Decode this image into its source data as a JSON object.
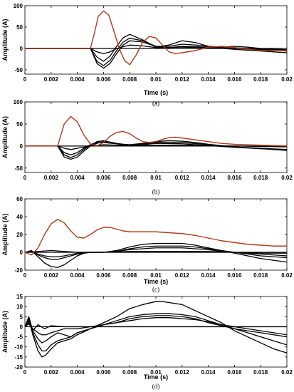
{
  "chart_data": [
    {
      "type": "line",
      "caption": "(a)",
      "xlabel": "Time (s)",
      "ylabel": "Amplitude (A)",
      "xlim": [
        0,
        0.02
      ],
      "ylim": [
        -60,
        100
      ],
      "xticks": [
        "0",
        "0.002",
        "0.004",
        "0.006",
        "0.008",
        "0.01",
        "0.012",
        "0.014",
        "0.016",
        "0.018",
        "0.02"
      ],
      "yticks": [
        -50,
        0,
        50,
        100
      ],
      "grid": false,
      "series": [
        {
          "color": "#b03a1a",
          "x": [
            0,
            0.005,
            0.0053,
            0.0056,
            0.006,
            0.0064,
            0.0068,
            0.0072,
            0.0076,
            0.008,
            0.0085,
            0.009,
            0.0095,
            0.01,
            0.0105,
            0.011,
            0.0115,
            0.012,
            0.013,
            0.014,
            0.015,
            0.016,
            0.017,
            0.018,
            0.019,
            0.02
          ],
          "y": [
            0,
            0,
            35,
            75,
            88,
            78,
            40,
            0,
            -28,
            -38,
            -15,
            15,
            28,
            25,
            8,
            -8,
            -12,
            -10,
            -5,
            3,
            5,
            2,
            -2,
            -5,
            -5,
            -4
          ]
        },
        {
          "color": "#000000",
          "x": [
            0,
            0.005,
            0.0055,
            0.006,
            0.0065,
            0.007,
            0.0075,
            0.008,
            0.009,
            0.01,
            0.011,
            0.012,
            0.013,
            0.014,
            0.015,
            0.016,
            0.017,
            0.018,
            0.019,
            0.02
          ],
          "y": [
            0,
            0,
            -20,
            -30,
            -18,
            5,
            25,
            33,
            20,
            3,
            8,
            18,
            14,
            5,
            3,
            5,
            3,
            0,
            -2,
            -3
          ]
        },
        {
          "color": "#000000",
          "x": [
            0,
            0.005,
            0.0055,
            0.006,
            0.0065,
            0.007,
            0.0075,
            0.008,
            0.009,
            0.01,
            0.011,
            0.012,
            0.013,
            0.014,
            0.016,
            0.018,
            0.02
          ],
          "y": [
            0,
            0,
            -30,
            -40,
            -28,
            -5,
            15,
            24,
            18,
            5,
            5,
            10,
            8,
            5,
            2,
            -3,
            -6
          ]
        },
        {
          "color": "#000000",
          "x": [
            0,
            0.005,
            0.0055,
            0.006,
            0.0065,
            0.007,
            0.0075,
            0.008,
            0.009,
            0.01,
            0.011,
            0.012,
            0.014,
            0.016,
            0.018,
            0.02
          ],
          "y": [
            0,
            0,
            -35,
            -46,
            -35,
            -12,
            8,
            18,
            15,
            5,
            2,
            5,
            3,
            -2,
            -6,
            -10
          ]
        },
        {
          "color": "#000000",
          "x": [
            0,
            0.005,
            0.0055,
            0.006,
            0.0065,
            0.007,
            0.008,
            0.009,
            0.01,
            0.012,
            0.014,
            0.016,
            0.018,
            0.02
          ],
          "y": [
            0,
            0,
            -8,
            -12,
            -8,
            0,
            8,
            6,
            2,
            3,
            2,
            0,
            -2,
            -4
          ]
        }
      ]
    },
    {
      "type": "line",
      "caption": "(b)",
      "xlabel": "",
      "ylabel": "Amplitude (A)",
      "xlim": [
        0,
        0.02
      ],
      "ylim": [
        -60,
        100
      ],
      "xticks": [
        "0",
        "0.002",
        "0.004",
        "0.006",
        "0.008",
        "0.01",
        "0.012",
        "0.014",
        "0.016",
        "0.018",
        "0.02"
      ],
      "yticks": [
        -50,
        0,
        50,
        100
      ],
      "grid": false,
      "series": [
        {
          "color": "#b03a1a",
          "x": [
            0,
            0.0025,
            0.003,
            0.0035,
            0.004,
            0.0045,
            0.005,
            0.0055,
            0.006,
            0.0065,
            0.007,
            0.0075,
            0.008,
            0.0085,
            0.009,
            0.0095,
            0.01,
            0.0105,
            0.011,
            0.0115,
            0.012,
            0.013,
            0.014,
            0.015,
            0.016,
            0.017,
            0.018,
            0.019,
            0.02
          ],
          "y": [
            0,
            0,
            50,
            67,
            55,
            25,
            5,
            0,
            8,
            22,
            31,
            33,
            28,
            18,
            10,
            8,
            10,
            15,
            19,
            20,
            18,
            14,
            10,
            6,
            4,
            3,
            2,
            1,
            0
          ]
        },
        {
          "color": "#000000",
          "x": [
            0,
            0.0025,
            0.003,
            0.0035,
            0.004,
            0.0045,
            0.005,
            0.0055,
            0.006,
            0.007,
            0.008,
            0.009,
            0.01,
            0.011,
            0.012,
            0.013,
            0.014,
            0.016,
            0.018,
            0.02
          ],
          "y": [
            0,
            0,
            -15,
            -20,
            -15,
            -5,
            3,
            8,
            8,
            5,
            3,
            6,
            10,
            12,
            11,
            8,
            4,
            -2,
            -6,
            -10
          ]
        },
        {
          "color": "#000000",
          "x": [
            0,
            0.0025,
            0.003,
            0.0035,
            0.004,
            0.0045,
            0.005,
            0.0055,
            0.006,
            0.007,
            0.008,
            0.009,
            0.01,
            0.012,
            0.014,
            0.016,
            0.018,
            0.02
          ],
          "y": [
            0,
            0,
            -20,
            -26,
            -20,
            -8,
            2,
            10,
            12,
            6,
            2,
            5,
            8,
            8,
            3,
            -2,
            -5,
            -8
          ]
        },
        {
          "color": "#000000",
          "x": [
            0,
            0.0025,
            0.003,
            0.0035,
            0.004,
            0.0045,
            0.005,
            0.0055,
            0.006,
            0.007,
            0.008,
            0.009,
            0.01,
            0.012,
            0.014,
            0.016,
            0.018,
            0.02
          ],
          "y": [
            0,
            0,
            -25,
            -30,
            -25,
            -12,
            0,
            6,
            10,
            5,
            0,
            3,
            6,
            5,
            1,
            -3,
            -6,
            -8
          ]
        },
        {
          "color": "#000000",
          "x": [
            0,
            0.0025,
            0.003,
            0.0035,
            0.004,
            0.005,
            0.006,
            0.008,
            0.01,
            0.012,
            0.014,
            0.016,
            0.018,
            0.02
          ],
          "y": [
            0,
            0,
            -5,
            -8,
            -5,
            0,
            3,
            1,
            2,
            2,
            1,
            0,
            -1,
            -2
          ]
        }
      ]
    },
    {
      "type": "line",
      "caption": "(c)",
      "xlabel": "Time (s)",
      "ylabel": "Amplitude (A)",
      "xlim": [
        0,
        0.02
      ],
      "ylim": [
        -20,
        60
      ],
      "xticks": [
        "0",
        "0.002",
        "0.004",
        "0.006",
        "0.008",
        "0.01",
        "0.012",
        "0.014",
        "0.016",
        "0.018",
        "0.02"
      ],
      "yticks": [
        -20,
        0,
        20,
        40,
        60
      ],
      "grid": false,
      "series": [
        {
          "color": "#b03a1a",
          "x": [
            0,
            0.0005,
            0.001,
            0.0015,
            0.002,
            0.0025,
            0.003,
            0.0035,
            0.004,
            0.0045,
            0.005,
            0.0055,
            0.006,
            0.0065,
            0.007,
            0.0075,
            0.008,
            0.009,
            0.01,
            0.011,
            0.012,
            0.013,
            0.014,
            0.015,
            0.016,
            0.017,
            0.018,
            0.019,
            0.02
          ],
          "y": [
            0,
            -3,
            5,
            20,
            32,
            37,
            33,
            24,
            17,
            16,
            20,
            25,
            28,
            28,
            26,
            24,
            23,
            23,
            23,
            22,
            21,
            19,
            16,
            13,
            11,
            9,
            8,
            7,
            7
          ]
        },
        {
          "color": "#000000",
          "x": [
            0,
            0.0005,
            0.001,
            0.0015,
            0.002,
            0.0025,
            0.003,
            0.0035,
            0.004,
            0.0045,
            0.005,
            0.006,
            0.007,
            0.008,
            0.009,
            0.01,
            0.011,
            0.012,
            0.013,
            0.014,
            0.015,
            0.016,
            0.017,
            0.018,
            0.019,
            0.02
          ],
          "y": [
            0,
            2,
            -5,
            -12,
            -16,
            -17,
            -14,
            -9,
            -4,
            -1,
            0,
            0,
            2,
            6,
            9,
            10,
            10,
            10,
            8,
            5,
            2,
            -1,
            -4,
            -7,
            -9,
            -11
          ]
        },
        {
          "color": "#000000",
          "x": [
            0,
            0.0005,
            0.001,
            0.0015,
            0.002,
            0.0025,
            0.003,
            0.0035,
            0.004,
            0.005,
            0.006,
            0.007,
            0.008,
            0.009,
            0.01,
            0.011,
            0.012,
            0.013,
            0.014,
            0.015,
            0.016,
            0.017,
            0.018,
            0.019,
            0.02
          ],
          "y": [
            0,
            1,
            -3,
            -6,
            -8,
            -8,
            -6,
            -4,
            -2,
            0,
            0,
            1,
            4,
            6,
            7,
            7,
            7,
            6,
            4,
            2,
            0,
            -2,
            -4,
            -5,
            -6
          ]
        },
        {
          "color": "#000000",
          "x": [
            0,
            0.0005,
            0.001,
            0.0015,
            0.002,
            0.0025,
            0.003,
            0.004,
            0.005,
            0.006,
            0.007,
            0.008,
            0.009,
            0.01,
            0.011,
            0.012,
            0.013,
            0.014,
            0.015,
            0.016,
            0.017,
            0.018,
            0.019,
            0.02
          ],
          "y": [
            0,
            1,
            -2,
            -4,
            -5,
            -5,
            -4,
            -1,
            0,
            0,
            1,
            3,
            4,
            5,
            5,
            5,
            4,
            3,
            1,
            0,
            -1,
            -2,
            -3,
            -4
          ]
        },
        {
          "color": "#000000",
          "x": [
            0,
            0.001,
            0.002,
            0.003,
            0.004,
            0.006,
            0.008,
            0.01,
            0.012,
            0.014,
            0.016,
            0.018,
            0.02
          ],
          "y": [
            0,
            1,
            2,
            1,
            0,
            0,
            1,
            1,
            1,
            1,
            0,
            -1,
            -1
          ]
        }
      ]
    },
    {
      "type": "line",
      "caption": "(d)",
      "xlabel": "Time (s)",
      "ylabel": "Amplitude (A)",
      "xlim": [
        0,
        0.02
      ],
      "ylim": [
        -20,
        15
      ],
      "xticks": [
        "0",
        "0.002",
        "0.004",
        "0.006",
        "0.008",
        "0.01",
        "0.012",
        "0.014",
        "0.016",
        "0.018",
        "0.02"
      ],
      "yticks": [
        -20,
        -15,
        -10,
        -5,
        0,
        5,
        10,
        15
      ],
      "grid": false,
      "series": [
        {
          "color": "#000000",
          "x": [
            0,
            0.0003,
            0.0006,
            0.001,
            0.0013,
            0.0016,
            0.002,
            0.0025,
            0.003,
            0.0035,
            0.004,
            0.005,
            0.006,
            0.007,
            0.008,
            0.009,
            0.01,
            0.0105,
            0.011,
            0.012,
            0.013,
            0.014,
            0.015,
            0.016,
            0.017,
            0.018,
            0.019,
            0.02
          ],
          "y": [
            0,
            4,
            -4,
            -12,
            -15,
            -14,
            -11,
            -8,
            -7,
            -6,
            -4,
            -1,
            2,
            5,
            9,
            11,
            12.5,
            12.5,
            12,
            11,
            8,
            5,
            2,
            -2,
            -5,
            -8,
            -11,
            -13
          ]
        },
        {
          "color": "#000000",
          "x": [
            0,
            0.0003,
            0.0006,
            0.001,
            0.0013,
            0.0016,
            0.002,
            0.0025,
            0.003,
            0.0035,
            0.004,
            0.005,
            0.006,
            0.007,
            0.008,
            0.009,
            0.01,
            0.011,
            0.012,
            0.013,
            0.014,
            0.015,
            0.016,
            0.017,
            0.018,
            0.019,
            0.02
          ],
          "y": [
            0,
            3,
            -3,
            -9,
            -12,
            -12,
            -9,
            -7,
            -6,
            -5,
            -3,
            -1,
            1,
            3,
            5,
            6,
            6.5,
            6.5,
            6,
            5,
            3,
            1,
            -1,
            -3,
            -5,
            -7,
            -9
          ]
        },
        {
          "color": "#000000",
          "x": [
            0,
            0.0003,
            0.0006,
            0.001,
            0.0013,
            0.0016,
            0.002,
            0.0025,
            0.003,
            0.0035,
            0.004,
            0.005,
            0.006,
            0.007,
            0.008,
            0.009,
            0.01,
            0.011,
            0.012,
            0.013,
            0.014,
            0.015,
            0.016,
            0.017,
            0.018,
            0.019,
            0.02
          ],
          "y": [
            0,
            2,
            -2,
            -6,
            -8,
            -7,
            -5,
            -3,
            -4,
            -5,
            -3,
            -1,
            1,
            2,
            4,
            5,
            5.5,
            5.5,
            5,
            4,
            2,
            0.5,
            -1,
            -2,
            -3,
            -4,
            -5
          ]
        },
        {
          "color": "#000000",
          "x": [
            0,
            0.0003,
            0.0006,
            0.001,
            0.0013,
            0.0016,
            0.002,
            0.0025,
            0.003,
            0.004,
            0.005,
            0.006,
            0.007,
            0.008,
            0.009,
            0.01,
            0.011,
            0.012,
            0.013,
            0.014,
            0.015,
            0.016,
            0.017,
            0.018,
            0.019,
            0.02
          ],
          "y": [
            0,
            1.5,
            -1,
            -3,
            -4,
            -4,
            -3,
            -2,
            -1,
            -1,
            0,
            1,
            2,
            3,
            4,
            4.5,
            4.5,
            4,
            3.5,
            2.5,
            1,
            0,
            -1,
            -2,
            -3,
            -4
          ]
        },
        {
          "color": "#000000",
          "x": [
            0,
            0.0003,
            0.0006,
            0.001,
            0.0015,
            0.002,
            0.003,
            0.004,
            0.006,
            0.008,
            0.01,
            0.012,
            0.014,
            0.016,
            0.018,
            0.02
          ],
          "y": [
            0,
            5,
            -2,
            1,
            -1,
            0.5,
            0,
            0,
            0,
            0,
            0,
            0,
            0,
            0,
            0,
            0
          ]
        }
      ]
    }
  ]
}
